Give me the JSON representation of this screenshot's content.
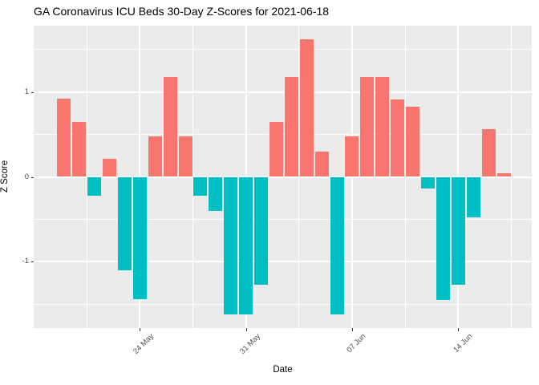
{
  "chart_data": {
    "type": "bar",
    "title": "GA Coronavirus ICU Beds 30-Day Z-Scores for 2021-06-18",
    "xlabel": "Date",
    "ylabel": "Z Score",
    "x": [
      "2021-05-19",
      "2021-05-20",
      "2021-05-21",
      "2021-05-22",
      "2021-05-23",
      "2021-05-24",
      "2021-05-25",
      "2021-05-26",
      "2021-05-27",
      "2021-05-28",
      "2021-05-29",
      "2021-05-30",
      "2021-05-31",
      "2021-06-01",
      "2021-06-02",
      "2021-06-03",
      "2021-06-04",
      "2021-06-05",
      "2021-06-06",
      "2021-06-07",
      "2021-06-08",
      "2021-06-09",
      "2021-06-10",
      "2021-06-11",
      "2021-06-12",
      "2021-06-13",
      "2021-06-14",
      "2021-06-15",
      "2021-06-16",
      "2021-06-17"
    ],
    "values": [
      0.92,
      0.65,
      -0.22,
      0.21,
      -1.1,
      -1.44,
      0.48,
      1.18,
      0.48,
      -0.22,
      -0.4,
      -1.62,
      -1.62,
      -1.27,
      0.65,
      1.18,
      1.62,
      0.3,
      -1.62,
      0.48,
      1.18,
      1.18,
      0.91,
      0.83,
      -0.14,
      -1.45,
      -1.27,
      -0.48,
      0.56,
      0.04
    ],
    "x_ticks": [
      {
        "index": 5,
        "label": "24 May"
      },
      {
        "index": 12,
        "label": "31 May"
      },
      {
        "index": 19,
        "label": "07 Jun"
      },
      {
        "index": 26,
        "label": "14 Jun"
      }
    ],
    "y_ticks": [
      -1,
      0,
      1
    ],
    "ylim": [
      -1.78,
      1.78
    ],
    "grid": "on",
    "legend": "none",
    "colors": {
      "positive_bar": "#F8766D",
      "negative_bar": "#00BFC4",
      "panel_background": "#EBEBEB",
      "gridline": "#FFFFFF",
      "tick_text": "#4D4D4D",
      "tick_mark": "#333333",
      "title_text": "#000000"
    }
  }
}
